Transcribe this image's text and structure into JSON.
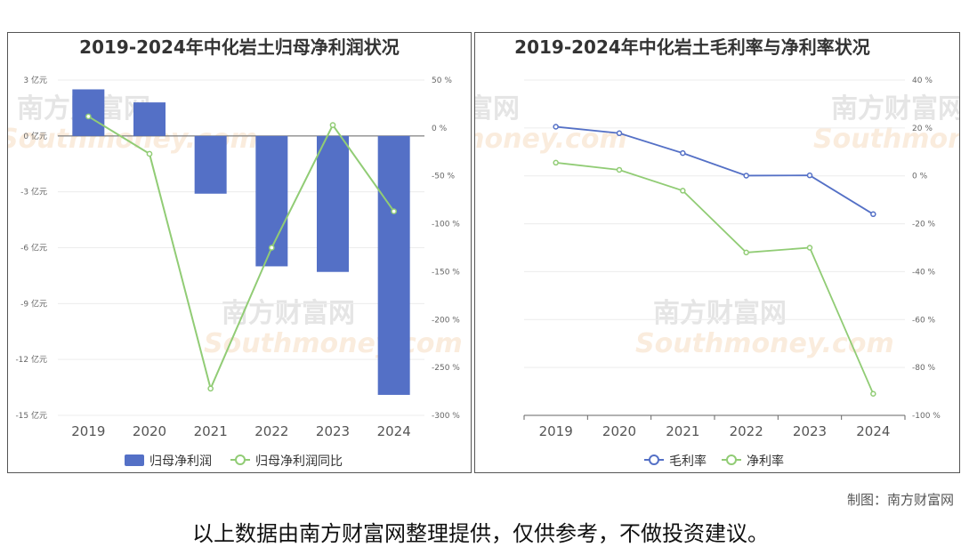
{
  "chart_data": [
    {
      "type": "bar+line",
      "title": "2019-2024年中化岩土归母净利润状况",
      "categories": [
        "2019",
        "2020",
        "2021",
        "2022",
        "2023",
        "2024"
      ],
      "series": [
        {
          "name": "归母净利润",
          "type": "bar",
          "axis": "left",
          "color": "#5470c6",
          "values": [
            2.5,
            1.8,
            -3.1,
            -7.0,
            -7.3,
            -13.9
          ]
        },
        {
          "name": "归母净利润同比",
          "type": "line",
          "axis": "right",
          "color": "#91cc75",
          "values": [
            12,
            -27,
            -272,
            -125,
            3,
            -87
          ]
        }
      ],
      "left_axis": {
        "ticks": [
          "3 亿元",
          "0 亿元",
          "-3 亿元",
          "-6 亿元",
          "-9 亿元",
          "-12 亿元",
          "-15 亿元"
        ],
        "ylim": [
          -15,
          3
        ]
      },
      "right_axis": {
        "ticks": [
          "50 %",
          "0 %",
          "-50 %",
          "-100 %",
          "-150 %",
          "-200 %",
          "-250 %",
          "-300 %"
        ],
        "ylim": [
          -300,
          50
        ]
      },
      "legend": "bottom"
    },
    {
      "type": "line",
      "title": "2019-2024年中化岩土毛利率与净利率状况",
      "categories": [
        "2019",
        "2020",
        "2021",
        "2022",
        "2023",
        "2024"
      ],
      "series": [
        {
          "name": "毛利率",
          "type": "line",
          "axis": "right",
          "color": "#5470c6",
          "values": [
            20.5,
            17.8,
            9.5,
            0.1,
            0.2,
            -16.0
          ]
        },
        {
          "name": "净利率",
          "type": "line",
          "axis": "right",
          "color": "#91cc75",
          "values": [
            5.5,
            2.5,
            -6.2,
            -32.0,
            -30.0,
            -91.0
          ]
        }
      ],
      "right_axis": {
        "ticks": [
          "40 %",
          "20 %",
          "0 %",
          "-20 %",
          "-40 %",
          "-60 %",
          "-80 %",
          "-100 %"
        ],
        "ylim": [
          -100,
          40
        ]
      },
      "legend": "bottom"
    }
  ],
  "watermark": {
    "brand": "南方财富网",
    "site": "Southmoney.com"
  },
  "footer": {
    "credit": "制图：南方财富网",
    "disclaimer": "以上数据由南方财富网整理提供，仅供参考，不做投资建议。"
  }
}
